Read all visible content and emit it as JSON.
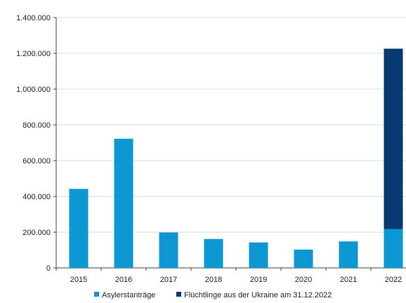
{
  "chart_data": {
    "type": "bar",
    "stacked": true,
    "title": "",
    "xlabel": "",
    "ylabel": "",
    "categories": [
      "2015",
      "2016",
      "2017",
      "2018",
      "2019",
      "2020",
      "2021",
      "2022"
    ],
    "series": [
      {
        "name": "Asylerstanträge",
        "color": "#0e97d3",
        "values": [
          441899,
          722370,
          198317,
          161931,
          142509,
          102581,
          148233,
          217774
        ]
      },
      {
        "name": "Flüchtlinge aus der Ukraine am 31.12.2022",
        "color": "#073b70",
        "values": [
          0,
          0,
          0,
          0,
          0,
          0,
          0,
          1008000
        ]
      }
    ],
    "ylim": [
      0,
      1400000
    ],
    "y_ticks": [
      0,
      200000,
      400000,
      600000,
      800000,
      1000000,
      1200000,
      1400000
    ],
    "y_tick_labels": [
      "0",
      "200.000",
      "400.000",
      "600.000",
      "800.000",
      "1.000.000",
      "1.200.000",
      "1.400.000"
    ],
    "grid": true,
    "legend_position": "bottom"
  }
}
